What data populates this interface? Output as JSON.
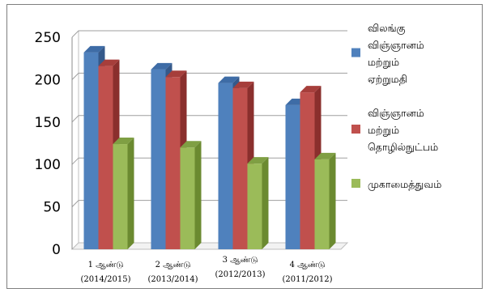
{
  "chart_data": {
    "type": "bar",
    "title": "",
    "xlabel": "",
    "ylabel": "",
    "ylim": [
      0,
      250
    ],
    "yticks": [
      0,
      50,
      100,
      150,
      200,
      250
    ],
    "grid": true,
    "legend_position": "right",
    "categories": [
      {
        "line1": "1 ஆண்டு",
        "line2": "(2014/2015)"
      },
      {
        "line1": "2 ஆண்டு",
        "line2": "(2013/2014)"
      },
      {
        "line1": "3 ஆண்டு",
        "line2": "(2012/2013)"
      },
      {
        "line1": "4 ஆண்டு",
        "line2": "(2011/2012)"
      }
    ],
    "series": [
      {
        "name_lines": [
          "விலங்கு",
          "விஞ்ஞானம்",
          "மற்றும்",
          "ஏற்றுமதி"
        ],
        "color": "#4f81bd",
        "side": "#35598a",
        "top": "#3e6ca6",
        "values": [
          232,
          212,
          196,
          170
        ]
      },
      {
        "name_lines": [
          "விஞ்ஞானம்",
          "மற்றும்",
          "தொழில்நுட்பம்"
        ],
        "color": "#c0504d",
        "side": "#8a2f2d",
        "top": "#a63e3b",
        "values": [
          216,
          203,
          190,
          185
        ]
      },
      {
        "name_lines": [
          "முகாமைத்துவம்"
        ],
        "color": "#9bbb59",
        "side": "#6b8a30",
        "top": "#7f9f43",
        "values": [
          124,
          120,
          101,
          106
        ]
      }
    ]
  }
}
